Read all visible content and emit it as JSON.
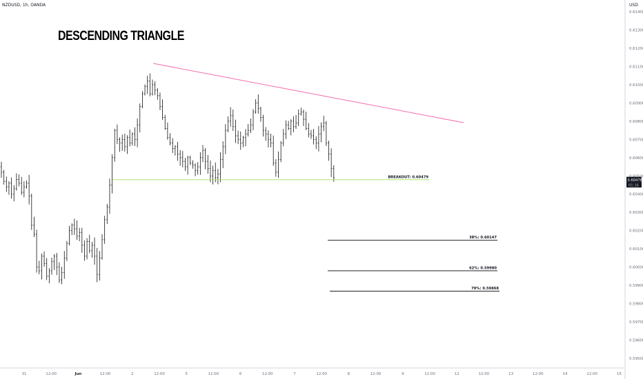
{
  "header": {
    "symbol": "NZDUSD, 1h, OANDA",
    "currency": "USD"
  },
  "chart_data": {
    "type": "ohlc",
    "title": "DESCENDING TRIANGLE",
    "ylim": [
      0.5945,
      0.6145
    ],
    "y_ticks": [
      "0.61400",
      "0.61300",
      "0.61200",
      "0.61100",
      "0.61000",
      "0.60900",
      "0.60800",
      "0.60700",
      "0.60600",
      "0.60500",
      "0.60400",
      "0.60300",
      "0.60200",
      "0.60100",
      "0.60000",
      "0.59900",
      "0.59800",
      "0.59700",
      "0.59600",
      "0.59500"
    ],
    "x_ticks": [
      "31",
      "12:00",
      "Jun",
      "12:00",
      "2",
      "12:00",
      "5",
      "12:00",
      "6",
      "12:00",
      "7",
      "12:00",
      "8",
      "12:00",
      "9",
      "12:00",
      "12",
      "12:00",
      "13",
      "12:00",
      "14",
      "12:00",
      "15"
    ],
    "last_price": "0.60478",
    "countdown": "01:16",
    "lines": [
      {
        "label": "BREAKOUT: 0.60479",
        "price": 0.60479,
        "kind": "breakout",
        "color": "#a5e05a"
      },
      {
        "label": "38%: 0.60147",
        "price": 0.60147,
        "kind": "target",
        "color": "#000000"
      },
      {
        "label": "62%: 0.59980",
        "price": 0.5998,
        "kind": "target",
        "color": "#000000"
      },
      {
        "label": "79%: 0.59868",
        "price": 0.59868,
        "kind": "target",
        "color": "#000000"
      }
    ],
    "trendline": {
      "color": "#f06bb0"
    },
    "closes": [
      0.6052,
      0.6047,
      0.6044,
      0.6046,
      0.604,
      0.6043,
      0.6048,
      0.6046,
      0.6041,
      0.6044,
      0.6046,
      0.6039,
      0.6023,
      0.6018,
      0.6,
      0.5998,
      0.6006,
      0.6002,
      0.5995,
      0.5998,
      0.6003,
      0.6006,
      0.6,
      0.5993,
      0.5997,
      0.6005,
      0.6013,
      0.602,
      0.6023,
      0.6021,
      0.6017,
      0.6019,
      0.6012,
      0.6006,
      0.6014,
      0.6009,
      0.6012,
      0.6006,
      0.5996,
      0.6005,
      0.6015,
      0.6026,
      0.6033,
      0.6045,
      0.606,
      0.6075,
      0.607,
      0.6068,
      0.607,
      0.6066,
      0.6071,
      0.6068,
      0.6073,
      0.607,
      0.6078,
      0.6088,
      0.6095,
      0.6099,
      0.6102,
      0.6095,
      0.61,
      0.6097,
      0.6094,
      0.6088,
      0.6082,
      0.6076,
      0.6071,
      0.6068,
      0.6065,
      0.6066,
      0.6062,
      0.606,
      0.6058,
      0.6055,
      0.606,
      0.6057,
      0.6056,
      0.6053,
      0.6055,
      0.606,
      0.6064,
      0.6058,
      0.6054,
      0.605,
      0.6053,
      0.6049,
      0.6051,
      0.6059,
      0.6066,
      0.6075,
      0.608,
      0.6083,
      0.6077,
      0.6072,
      0.607,
      0.6068,
      0.6071,
      0.6073,
      0.6075,
      0.6078,
      0.6085,
      0.609,
      0.6087,
      0.6082,
      0.6075,
      0.6073,
      0.607,
      0.6068,
      0.6057,
      0.6052,
      0.6059,
      0.6068,
      0.6073,
      0.6078,
      0.6076,
      0.608,
      0.6077,
      0.6079,
      0.6084,
      0.6085,
      0.6081,
      0.6076,
      0.6073,
      0.6072,
      0.607,
      0.6068,
      0.6073,
      0.6077,
      0.6079,
      0.6068,
      0.6062,
      0.6054,
      0.6049
    ]
  }
}
